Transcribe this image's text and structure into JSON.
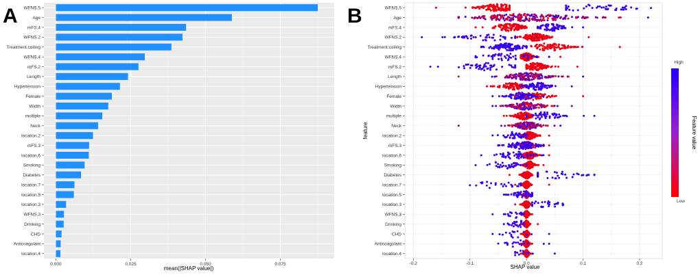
{
  "chart_data": [
    {
      "panel_label": "A",
      "type": "bar",
      "orientation": "horizontal",
      "categories": [
        "WFNS.5",
        "Age",
        "mFS.4",
        "WFNS.2",
        "Treatment.coiling",
        "WFNS.4",
        "mFS.2",
        "Length",
        "Hypertension",
        "Female",
        "Width",
        "multiple",
        "Neck",
        "location.2",
        "mFS.3",
        "location.6",
        "Smoking",
        "Diabetes",
        "location.7",
        "location.5",
        "location.3",
        "WFNS.3",
        "Drinking",
        "CHD",
        "Anticoagulant",
        "location.4"
      ],
      "values": [
        0.0875,
        0.0588,
        0.0435,
        0.0423,
        0.0386,
        0.0297,
        0.0276,
        0.0241,
        0.0214,
        0.0187,
        0.0175,
        0.0155,
        0.0141,
        0.0124,
        0.0111,
        0.011,
        0.0096,
        0.0084,
        0.0062,
        0.006,
        0.0034,
        0.0027,
        0.0026,
        0.0019,
        0.0016,
        0.0015
      ],
      "xlabel": "mean(|SHAP value|)",
      "ylabel": "",
      "xlim": [
        -0.004,
        0.093
      ],
      "xticks": [
        "0.000",
        "0.025",
        "0.050",
        "0.075"
      ],
      "grid": true,
      "bar_color": "#1E90FF",
      "panel_background": "#EBEBEB"
    },
    {
      "panel_label": "B",
      "type": "scatter",
      "subtype": "beeswarm",
      "categories": [
        "WFNS.5",
        "Age",
        "mFS.4",
        "WFNS.2",
        "Treatment.coiling",
        "WFNS.4",
        "mFS.2",
        "Length",
        "Hypertension",
        "Female",
        "Width",
        "multiple",
        "Neck",
        "location.2",
        "mFS.3",
        "location.6",
        "Smoking",
        "Diabetes",
        "location.7",
        "location.5",
        "location.3",
        "WFNS.3",
        "Drinking",
        "CHD",
        "Anticoagulant",
        "location.4"
      ],
      "series": [
        {
          "feature": "WFNS.5",
          "low": {
            "center": -0.05,
            "spread": 0.022,
            "n": 120,
            "min": -0.16,
            "max": -0.03
          },
          "high": {
            "center": 0.12,
            "spread": 0.05,
            "n": 45,
            "min": 0.07,
            "max": 0.22
          }
        },
        {
          "feature": "Age",
          "mixed": true,
          "center": 0.0,
          "spread": 0.06,
          "n": 220,
          "min": -0.12,
          "max": 0.215
        },
        {
          "feature": "mFS.4",
          "low": {
            "center": -0.03,
            "spread": 0.018,
            "n": 110,
            "min": -0.09,
            "max": 0.0
          },
          "high": {
            "center": 0.045,
            "spread": 0.015,
            "n": 70,
            "min": 0.02,
            "max": 0.1
          }
        },
        {
          "feature": "WFNS.2",
          "low": {
            "center": 0.015,
            "spread": 0.015,
            "n": 130,
            "min": -0.02,
            "max": 0.11
          },
          "high": {
            "center": -0.07,
            "spread": 0.03,
            "n": 45,
            "min": -0.185,
            "max": -0.02
          }
        },
        {
          "feature": "Treatment.coiling",
          "low": {
            "center": 0.04,
            "spread": 0.025,
            "n": 90,
            "min": 0.0,
            "max": 0.165
          },
          "high": {
            "center": -0.035,
            "spread": 0.02,
            "n": 100,
            "min": -0.08,
            "max": 0.0
          }
        },
        {
          "feature": "WFNS.4",
          "low": {
            "center": 0.0,
            "spread": 0.008,
            "n": 130,
            "min": -0.01,
            "max": 0.06
          },
          "high": {
            "center": -0.035,
            "spread": 0.03,
            "n": 50,
            "min": -0.09,
            "max": 0.04
          }
        },
        {
          "feature": "mFS.2",
          "low": {
            "center": 0.015,
            "spread": 0.015,
            "n": 120,
            "min": 0.0,
            "max": 0.09
          },
          "high": {
            "center": -0.07,
            "spread": 0.035,
            "n": 50,
            "min": -0.17,
            "max": -0.02
          }
        },
        {
          "feature": "Length",
          "mixed": true,
          "center": 0.0,
          "spread": 0.025,
          "n": 170,
          "min": -0.12,
          "max": 0.1
        },
        {
          "feature": "Hypertension",
          "low": {
            "center": -0.025,
            "spread": 0.015,
            "n": 100,
            "min": -0.07,
            "max": 0.0
          },
          "high": {
            "center": 0.02,
            "spread": 0.015,
            "n": 80,
            "min": -0.01,
            "max": 0.08
          }
        },
        {
          "feature": "Female",
          "low": {
            "center": 0.01,
            "spread": 0.02,
            "n": 90,
            "min": -0.02,
            "max": 0.1
          },
          "high": {
            "center": -0.01,
            "spread": 0.015,
            "n": 80,
            "min": -0.06,
            "max": 0.03
          }
        },
        {
          "feature": "Width",
          "mixed": true,
          "center": 0.0,
          "spread": 0.02,
          "n": 160,
          "min": -0.06,
          "max": 0.08
        },
        {
          "feature": "multiple",
          "low": {
            "center": -0.005,
            "spread": 0.01,
            "n": 120,
            "min": -0.04,
            "max": 0.01
          },
          "high": {
            "center": 0.03,
            "spread": 0.02,
            "n": 50,
            "min": 0.0,
            "max": 0.12
          }
        },
        {
          "feature": "Neck",
          "mixed": true,
          "center": 0.0,
          "spread": 0.015,
          "n": 150,
          "min": -0.12,
          "max": 0.06
        },
        {
          "feature": "location.2",
          "low": {
            "center": 0.005,
            "spread": 0.008,
            "n": 120,
            "min": -0.01,
            "max": 0.04
          },
          "high": {
            "center": -0.02,
            "spread": 0.015,
            "n": 40,
            "min": -0.06,
            "max": 0.0
          }
        },
        {
          "feature": "mFS.3",
          "low": {
            "center": 0.005,
            "spread": 0.01,
            "n": 60,
            "min": -0.01,
            "max": 0.04
          },
          "high": {
            "center": -0.005,
            "spread": 0.018,
            "n": 100,
            "min": -0.05,
            "max": 0.03
          }
        },
        {
          "feature": "location.6",
          "low": {
            "center": 0.005,
            "spread": 0.008,
            "n": 110,
            "min": -0.01,
            "max": 0.04
          },
          "high": {
            "center": -0.02,
            "spread": 0.02,
            "n": 50,
            "min": -0.08,
            "max": 0.03
          }
        },
        {
          "feature": "Smoking",
          "low": {
            "center": 0.005,
            "spread": 0.006,
            "n": 100,
            "min": -0.01,
            "max": 0.03
          },
          "high": {
            "center": -0.04,
            "spread": 0.02,
            "n": 40,
            "min": -0.09,
            "max": 0.0
          }
        },
        {
          "feature": "Diabetes",
          "low": {
            "center": 0.0,
            "spread": 0.005,
            "n": 110,
            "min": -0.03,
            "max": 0.02
          },
          "high": {
            "center": 0.05,
            "spread": 0.03,
            "n": 35,
            "min": 0.02,
            "max": 0.12
          }
        },
        {
          "feature": "location.7",
          "low": {
            "center": 0.0,
            "spread": 0.004,
            "n": 110,
            "min": -0.02,
            "max": 0.04
          },
          "high": {
            "center": -0.05,
            "spread": 0.03,
            "n": 25,
            "min": -0.1,
            "max": -0.01
          }
        },
        {
          "feature": "location.5",
          "low": {
            "center": 0.0,
            "spread": 0.003,
            "n": 90,
            "min": -0.01,
            "max": 0.01
          },
          "high": {
            "center": -0.005,
            "spread": 0.012,
            "n": 60,
            "min": -0.04,
            "max": 0.01
          }
        },
        {
          "feature": "location.3",
          "low": {
            "center": 0.0,
            "spread": 0.004,
            "n": 110,
            "min": -0.02,
            "max": 0.01
          },
          "high": {
            "center": 0.03,
            "spread": 0.02,
            "n": 25,
            "min": 0.01,
            "max": 0.065
          }
        },
        {
          "feature": "WFNS.3",
          "low": {
            "center": 0.0,
            "spread": 0.003,
            "n": 110,
            "min": -0.01,
            "max": 0.01
          },
          "high": {
            "center": -0.02,
            "spread": 0.01,
            "n": 18,
            "min": -0.06,
            "max": -0.005
          }
        },
        {
          "feature": "Drinking",
          "low": {
            "center": 0.0,
            "spread": 0.003,
            "n": 110,
            "min": -0.01,
            "max": 0.02
          },
          "high": {
            "center": -0.015,
            "spread": 0.01,
            "n": 25,
            "min": -0.04,
            "max": -0.005
          }
        },
        {
          "feature": "CHD",
          "low": {
            "center": 0.0,
            "spread": 0.003,
            "n": 110,
            "min": -0.01,
            "max": 0.005
          },
          "high": {
            "center": -0.02,
            "spread": 0.015,
            "n": 15,
            "min": -0.06,
            "max": 0.04
          }
        },
        {
          "feature": "Anticoagulant",
          "low": {
            "center": 0.0,
            "spread": 0.003,
            "n": 110,
            "min": -0.01,
            "max": 0.01
          },
          "high": {
            "center": -0.015,
            "spread": 0.015,
            "n": 18,
            "min": -0.05,
            "max": 0.04
          }
        },
        {
          "feature": "location.4",
          "low": {
            "center": 0.0,
            "spread": 0.003,
            "n": 110,
            "min": -0.01,
            "max": 0.01
          },
          "high": {
            "center": -0.01,
            "spread": 0.01,
            "n": 12,
            "min": -0.02,
            "max": 0.05
          }
        }
      ],
      "xlabel": "SHAP value",
      "ylabel": "feature",
      "xlim": [
        -0.215,
        0.24
      ],
      "xticks": [
        "-0.2",
        "-0.1",
        "0.0",
        "0.1",
        "0.2"
      ],
      "grid": true,
      "panel_background": "#FFFFFF",
      "legend": {
        "title": "Feature value",
        "high_label": "High",
        "low_label": "Low",
        "high_color": "#0000FF",
        "low_color": "#FF0000",
        "placement": "right"
      }
    }
  ]
}
